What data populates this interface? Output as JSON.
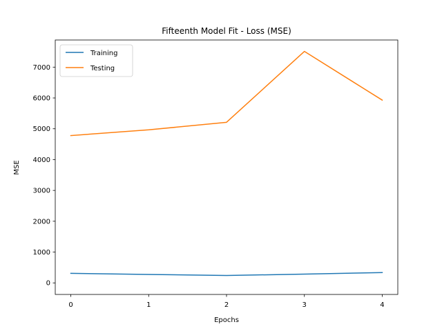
{
  "chart_data": {
    "type": "line",
    "title": "Fifteenth Model Fit - Loss (MSE)",
    "xlabel": "Epochs",
    "ylabel": "MSE",
    "x": [
      0,
      1,
      2,
      3,
      4
    ],
    "xlim": [
      -0.2,
      4.2
    ],
    "ylim": [
      -375,
      7880
    ],
    "xticks": [
      0,
      1,
      2,
      3,
      4
    ],
    "yticks": [
      0,
      1000,
      2000,
      3000,
      4000,
      5000,
      6000,
      7000
    ],
    "grid": false,
    "legend_position": "top-left",
    "series": [
      {
        "name": "Training",
        "color": "#1f77b4",
        "values": [
          310,
          275,
          240,
          285,
          335
        ]
      },
      {
        "name": "Testing",
        "color": "#ff7f0e",
        "values": [
          4780,
          4965,
          5210,
          7510,
          5930
        ]
      }
    ]
  }
}
